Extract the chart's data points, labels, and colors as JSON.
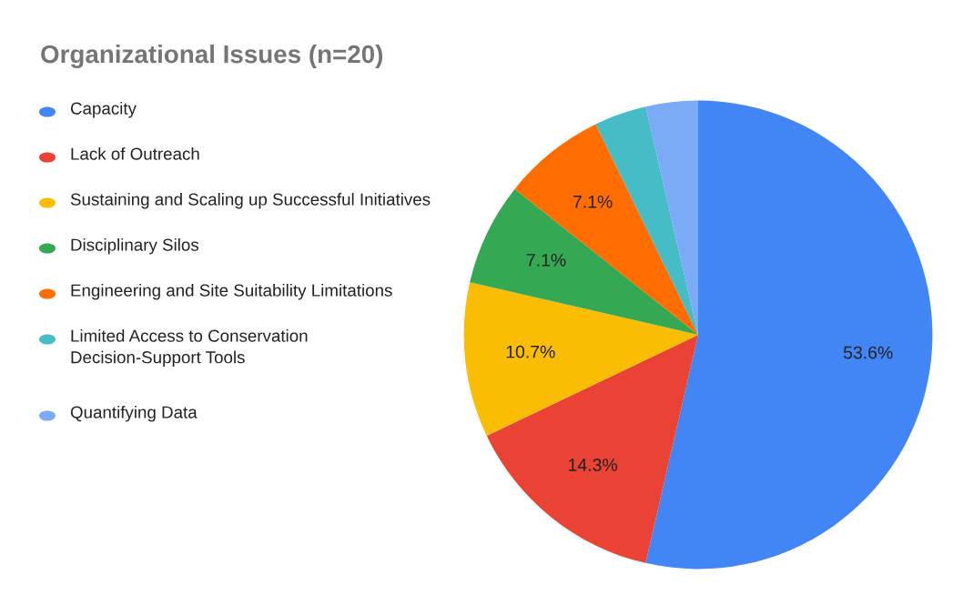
{
  "chart_data": {
    "type": "pie",
    "title": "Organizational Issues (n=20)",
    "categories": [
      "Capacity",
      "Lack of Outreach",
      "Sustaining and Scaling up Successful Initiatives",
      "Disciplinary Silos",
      "Engineering and Site Suitability Limitations",
      "Limited Access to Conservation Decision-Support Tools",
      "Quantifying Data"
    ],
    "values": [
      53.6,
      14.3,
      10.7,
      7.1,
      7.1,
      3.6,
      3.6
    ],
    "colors": [
      "#4285f4",
      "#ea4335",
      "#fbbc04",
      "#34a853",
      "#ff6d01",
      "#46bdc6",
      "#7baaf7"
    ],
    "value_labels": [
      "53.6%",
      "14.3%",
      "10.7%",
      "7.1%",
      "7.1%",
      null,
      null
    ],
    "legend": "left"
  }
}
